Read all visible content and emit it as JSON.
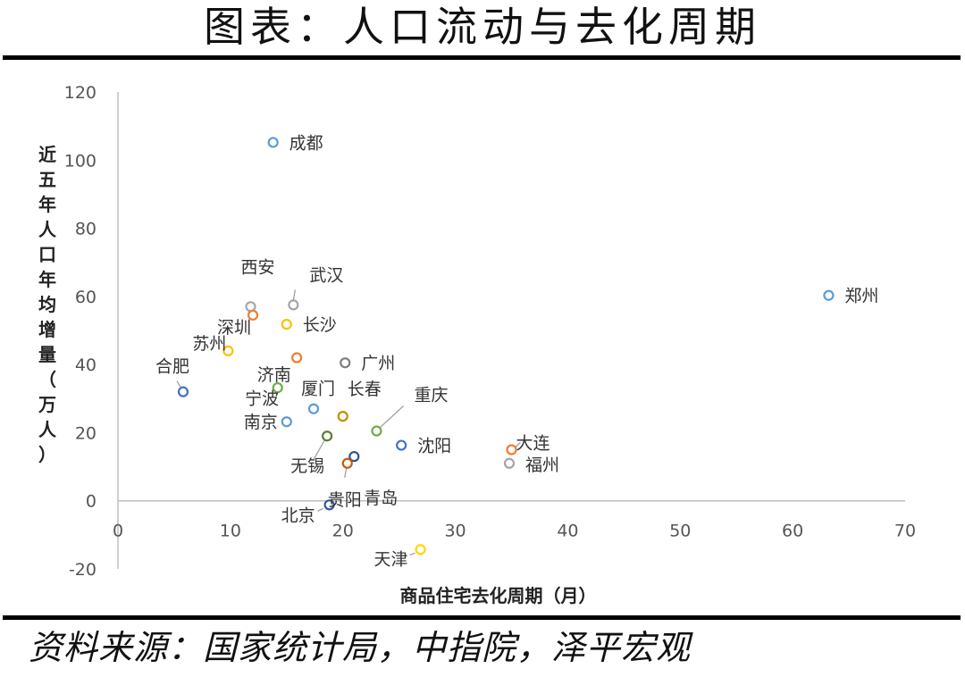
{
  "header": {
    "title": "图表：人口流动与去化周期"
  },
  "footer": {
    "source": "资料来源：国家统计局，中指院，泽平宏观"
  },
  "chart_data": {
    "type": "scatter",
    "title": "",
    "xlabel": "商品住宅去化周期（月）",
    "ylabel": "近五年人口年均增量（万人）",
    "xlim": [
      0,
      70
    ],
    "ylim": [
      -20,
      120
    ],
    "xticks": [
      0,
      10,
      20,
      30,
      40,
      50,
      60,
      70
    ],
    "yticks": [
      -20,
      0,
      20,
      40,
      60,
      80,
      100,
      120
    ],
    "grid": false,
    "legend": "none",
    "points": [
      {
        "name": "成都",
        "x": 13.8,
        "y": 105.2,
        "color": "#5B9BD5"
      },
      {
        "name": "郑州",
        "x": 63.2,
        "y": 60.3,
        "color": "#5B9BD5"
      },
      {
        "name": "西安",
        "x": 11.8,
        "y": 57.0,
        "color": "#A5A5A5"
      },
      {
        "name": "武汉",
        "x": 15.6,
        "y": 57.5,
        "color": "#A5A5A5"
      },
      {
        "name": "深圳",
        "x": 12.0,
        "y": 54.5,
        "color": "#ED7D31"
      },
      {
        "name": "长沙",
        "x": 15.0,
        "y": 51.8,
        "color": "#FFC000"
      },
      {
        "name": "苏州",
        "x": 9.8,
        "y": 44.0,
        "color": "#FFC000"
      },
      {
        "name": "广州",
        "x": 20.2,
        "y": 40.5,
        "color": "#7F7F7F"
      },
      {
        "name": "合肥",
        "x": 5.8,
        "y": 32.0,
        "color": "#4472C4"
      },
      {
        "name": "济南",
        "x": 14.2,
        "y": 33.2,
        "color": "#70AD47"
      },
      {
        "name": "厦门",
        "x": 17.4,
        "y": 27.0,
        "color": "#5B9BD5"
      },
      {
        "name": "长春",
        "x": 20.0,
        "y": 24.8,
        "color": "#BF9000"
      },
      {
        "name": "宁波",
        "x": 15.9,
        "y": 42.0,
        "color": "#ED7D31"
      },
      {
        "name": "南京",
        "x": 15.0,
        "y": 23.2,
        "color": "#5B9BD5"
      },
      {
        "name": "重庆",
        "x": 23.0,
        "y": 20.5,
        "color": "#70AD47"
      },
      {
        "name": "沈阳",
        "x": 25.2,
        "y": 16.3,
        "color": "#4472C4"
      },
      {
        "name": "大连",
        "x": 35.0,
        "y": 15.0,
        "color": "#ED7D31"
      },
      {
        "name": "福州",
        "x": 34.8,
        "y": 11.0,
        "color": "#A5A5A5"
      },
      {
        "name": "无锡",
        "x": 18.6,
        "y": 19.0,
        "color": "#548235"
      },
      {
        "name": "青岛",
        "x": 21.0,
        "y": 13.0,
        "color": "#2F5597"
      },
      {
        "name": "贵阳",
        "x": 20.4,
        "y": 11.0,
        "color": "#C55A11"
      },
      {
        "name": "北京",
        "x": 18.8,
        "y": -1.2,
        "color": "#2F5597"
      },
      {
        "name": "天津",
        "x": 26.9,
        "y": -14.3,
        "color": "#FFD700"
      }
    ]
  }
}
